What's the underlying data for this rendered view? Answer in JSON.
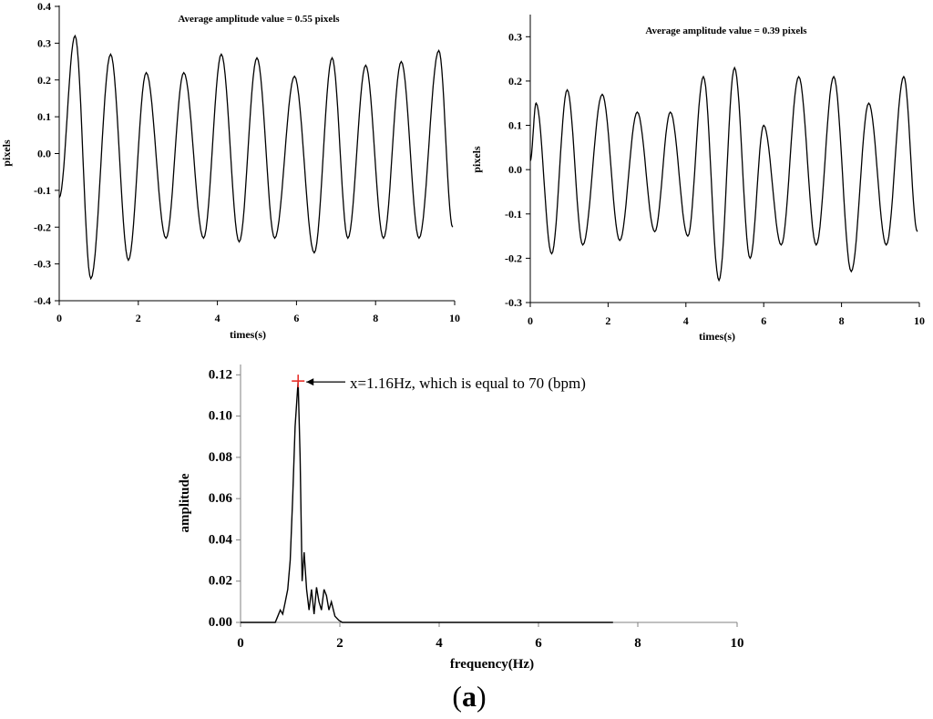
{
  "panel_label": {
    "open": "(",
    "letter": "a",
    "close": ")"
  },
  "colors": {
    "line": "#000000",
    "axis": "#808080",
    "peak_marker": "#e8302a"
  },
  "chart_data": [
    {
      "type": "line",
      "id": "top-left",
      "annotation": "Average amplitude value = 0.55 pixels",
      "xlabel": "times(s)",
      "ylabel": "pixels",
      "xlim": [
        0,
        10
      ],
      "ylim": [
        -0.4,
        0.4
      ],
      "xticks": [
        0,
        2,
        4,
        6,
        8,
        10
      ],
      "yticks": [
        -0.4,
        -0.3,
        -0.2,
        -0.1,
        0.0,
        0.1,
        0.2,
        0.3,
        0.4
      ],
      "ytick_labels": [
        "-0.4",
        "-0.3",
        "-0.2",
        "-0.1",
        "0.0",
        "0.1",
        "0.2",
        "0.3",
        "0.4"
      ],
      "grid": false,
      "series": [
        {
          "extrema": [
            [
              0.0,
              -0.12
            ],
            [
              0.4,
              0.32
            ],
            [
              0.8,
              -0.34
            ],
            [
              1.3,
              0.27
            ],
            [
              1.75,
              -0.29
            ],
            [
              2.2,
              0.22
            ],
            [
              2.7,
              -0.23
            ],
            [
              3.15,
              0.22
            ],
            [
              3.65,
              -0.23
            ],
            [
              4.1,
              0.27
            ],
            [
              4.55,
              -0.24
            ],
            [
              5.0,
              0.26
            ],
            [
              5.45,
              -0.23
            ],
            [
              5.95,
              0.21
            ],
            [
              6.45,
              -0.27
            ],
            [
              6.9,
              0.26
            ],
            [
              7.3,
              -0.23
            ],
            [
              7.75,
              0.24
            ],
            [
              8.2,
              -0.23
            ],
            [
              8.65,
              0.25
            ],
            [
              9.1,
              -0.23
            ],
            [
              9.6,
              0.28
            ],
            [
              9.95,
              -0.2
            ]
          ]
        }
      ]
    },
    {
      "type": "line",
      "id": "top-right",
      "annotation": "Average amplitude value = 0.39 pixels",
      "xlabel": "times(s)",
      "ylabel": "pixels",
      "xlim": [
        0,
        10
      ],
      "ylim": [
        -0.3,
        0.35
      ],
      "xticks": [
        0,
        2,
        4,
        6,
        8,
        10
      ],
      "yticks": [
        -0.3,
        -0.2,
        -0.1,
        0.0,
        0.1,
        0.2,
        0.3
      ],
      "ytick_labels": [
        "-0.3",
        "-0.2",
        "-0.1",
        "0.0",
        "0.1",
        "0.2",
        "0.3"
      ],
      "grid": false,
      "series": [
        {
          "extrema": [
            [
              0.0,
              0.02
            ],
            [
              0.15,
              0.15
            ],
            [
              0.55,
              -0.19
            ],
            [
              0.95,
              0.18
            ],
            [
              1.35,
              -0.17
            ],
            [
              1.85,
              0.17
            ],
            [
              2.3,
              -0.16
            ],
            [
              2.75,
              0.13
            ],
            [
              3.2,
              -0.14
            ],
            [
              3.6,
              0.13
            ],
            [
              4.05,
              -0.15
            ],
            [
              4.45,
              0.21
            ],
            [
              4.85,
              -0.25
            ],
            [
              5.25,
              0.23
            ],
            [
              5.65,
              -0.2
            ],
            [
              6.0,
              0.1
            ],
            [
              6.45,
              -0.17
            ],
            [
              6.9,
              0.21
            ],
            [
              7.35,
              -0.17
            ],
            [
              7.8,
              0.21
            ],
            [
              8.25,
              -0.23
            ],
            [
              8.7,
              0.15
            ],
            [
              9.15,
              -0.17
            ],
            [
              9.6,
              0.21
            ],
            [
              9.95,
              -0.14
            ]
          ]
        }
      ]
    },
    {
      "type": "line",
      "id": "bottom-spectrum",
      "xlabel": "frequency(Hz)",
      "ylabel": "amplitude",
      "xlim": [
        0,
        10
      ],
      "ylim": [
        0,
        0.125
      ],
      "xticks": [
        0,
        2,
        4,
        6,
        8,
        10
      ],
      "yticks": [
        0.0,
        0.02,
        0.04,
        0.06,
        0.08,
        0.1,
        0.12
      ],
      "ytick_labels": [
        "0.00",
        "0.02",
        "0.04",
        "0.06",
        "0.08",
        "0.10",
        "0.12"
      ],
      "grid": false,
      "peak": {
        "x": 1.16,
        "y": 0.117,
        "label": "x=1.16Hz, which is equal to 70 (bpm)"
      },
      "series": [
        {
          "points": [
            [
              0,
              0
            ],
            [
              0.7,
              0
            ],
            [
              0.75,
              0.003
            ],
            [
              0.8,
              0.006
            ],
            [
              0.85,
              0.004
            ],
            [
              0.9,
              0.01
            ],
            [
              0.95,
              0.016
            ],
            [
              1.0,
              0.03
            ],
            [
              1.05,
              0.06
            ],
            [
              1.1,
              0.095
            ],
            [
              1.16,
              0.117
            ],
            [
              1.2,
              0.08
            ],
            [
              1.24,
              0.02
            ],
            [
              1.28,
              0.034
            ],
            [
              1.33,
              0.016
            ],
            [
              1.38,
              0.006
            ],
            [
              1.43,
              0.016
            ],
            [
              1.48,
              0.004
            ],
            [
              1.53,
              0.017
            ],
            [
              1.58,
              0.01
            ],
            [
              1.63,
              0.006
            ],
            [
              1.68,
              0.016
            ],
            [
              1.73,
              0.013
            ],
            [
              1.78,
              0.006
            ],
            [
              1.83,
              0.01
            ],
            [
              1.9,
              0.003
            ],
            [
              1.98,
              0.001
            ],
            [
              2.05,
              0
            ],
            [
              7.5,
              0
            ]
          ]
        }
      ]
    }
  ]
}
